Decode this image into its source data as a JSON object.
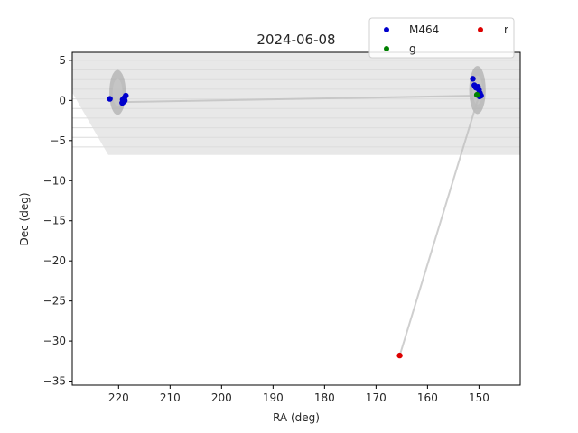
{
  "chart_data": {
    "type": "scatter",
    "title": "2024-06-08",
    "xlabel": "RA (deg)",
    "ylabel": "Dec (deg)",
    "xlim": [
      229,
      142
    ],
    "ylim": [
      -35.5,
      6
    ],
    "x_inverted": true,
    "grid": false,
    "legend_position": "top-right",
    "legend_columns": 2,
    "x_ticks": [
      220,
      210,
      200,
      190,
      180,
      170,
      160,
      150
    ],
    "y_ticks": [
      5,
      0,
      -5,
      -10,
      -15,
      -20,
      -25,
      -30,
      -35
    ],
    "series": [
      {
        "name": "M464",
        "color": "#0000cc",
        "points": [
          [
            221.7,
            0.2
          ],
          [
            219.2,
            0.1
          ],
          [
            218.8,
            0.0
          ],
          [
            219.1,
            -0.2
          ],
          [
            218.9,
            0.3
          ],
          [
            218.6,
            0.6
          ],
          [
            219.3,
            -0.3
          ],
          [
            151.2,
            2.7
          ],
          [
            150.9,
            1.9
          ],
          [
            150.6,
            1.6
          ],
          [
            150.2,
            1.7
          ],
          [
            150.0,
            1.3
          ],
          [
            149.8,
            0.9
          ],
          [
            149.9,
            0.5
          ],
          [
            149.6,
            0.6
          ]
        ]
      },
      {
        "name": "g",
        "color": "#008000",
        "points": [
          [
            150.4,
            0.7
          ]
        ]
      },
      {
        "name": "r",
        "color": "#dd0000",
        "points": [
          [
            165.4,
            -31.8
          ]
        ]
      }
    ],
    "path_line": {
      "color": "#bbbbbb",
      "points": [
        [
          219.0,
          -0.2
        ],
        [
          150.0,
          0.6
        ],
        [
          165.4,
          -31.8
        ]
      ]
    },
    "footprint": {
      "color": "#cccccc",
      "polygon": [
        [
          229,
          6
        ],
        [
          142,
          6
        ],
        [
          142,
          -6.8
        ],
        [
          216,
          -6.8
        ],
        [
          222,
          -6.8
        ],
        [
          229,
          1.0
        ]
      ],
      "dense_regions": [
        {
          "center": [
            220.2,
            1.0
          ],
          "radii": [
            1.6,
            2.8
          ]
        },
        {
          "center": [
            150.3,
            1.3
          ],
          "radii": [
            1.6,
            3.0
          ]
        }
      ]
    }
  }
}
